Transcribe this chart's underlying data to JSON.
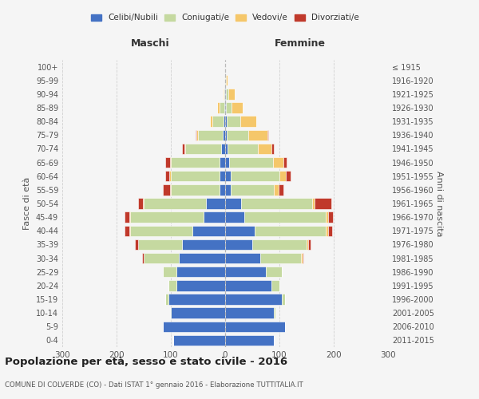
{
  "age_groups": [
    "0-4",
    "5-9",
    "10-14",
    "15-19",
    "20-24",
    "25-29",
    "30-34",
    "35-39",
    "40-44",
    "45-49",
    "50-54",
    "55-59",
    "60-64",
    "65-69",
    "70-74",
    "75-79",
    "80-84",
    "85-89",
    "90-94",
    "95-99",
    "100+"
  ],
  "birth_years": [
    "2011-2015",
    "2006-2010",
    "2001-2005",
    "1996-2000",
    "1991-1995",
    "1986-1990",
    "1981-1985",
    "1976-1980",
    "1971-1975",
    "1966-1970",
    "1961-1965",
    "1956-1960",
    "1951-1955",
    "1946-1950",
    "1941-1945",
    "1936-1940",
    "1931-1935",
    "1926-1930",
    "1921-1925",
    "1916-1920",
    "≤ 1915"
  ],
  "maschi": {
    "celibi": [
      95,
      115,
      100,
      105,
      90,
      90,
      85,
      80,
      60,
      40,
      35,
      10,
      10,
      10,
      8,
      5,
      3,
      2,
      1,
      0,
      0
    ],
    "coniugati": [
      0,
      0,
      2,
      5,
      15,
      25,
      65,
      80,
      115,
      135,
      115,
      90,
      90,
      90,
      65,
      45,
      20,
      8,
      2,
      0,
      0
    ],
    "vedovi": [
      0,
      0,
      0,
      0,
      0,
      0,
      0,
      1,
      2,
      2,
      2,
      2,
      3,
      2,
      2,
      3,
      5,
      5,
      2,
      0,
      0
    ],
    "divorziati": [
      0,
      0,
      0,
      0,
      0,
      0,
      3,
      5,
      8,
      8,
      8,
      12,
      8,
      8,
      4,
      2,
      0,
      0,
      0,
      0,
      0
    ]
  },
  "femmine": {
    "nubili": [
      90,
      110,
      90,
      105,
      85,
      75,
      65,
      50,
      55,
      35,
      30,
      10,
      10,
      8,
      5,
      3,
      3,
      2,
      1,
      0,
      0
    ],
    "coniugate": [
      0,
      0,
      2,
      5,
      15,
      30,
      75,
      100,
      130,
      150,
      130,
      80,
      90,
      80,
      55,
      40,
      25,
      10,
      5,
      2,
      0
    ],
    "vedove": [
      0,
      0,
      0,
      0,
      0,
      0,
      2,
      3,
      4,
      4,
      5,
      8,
      12,
      20,
      25,
      35,
      30,
      20,
      12,
      2,
      0
    ],
    "divorziate": [
      0,
      0,
      0,
      0,
      0,
      0,
      2,
      5,
      8,
      10,
      30,
      10,
      8,
      5,
      4,
      2,
      0,
      0,
      0,
      0,
      0
    ]
  },
  "colors": {
    "celibi": "#4472C4",
    "coniugati": "#c5d9a0",
    "vedovi": "#f5c76a",
    "divorziati": "#c0392b"
  },
  "xlim": 300,
  "title": "Popolazione per età, sesso e stato civile - 2016",
  "subtitle": "COMUNE DI COLVERDE (CO) - Dati ISTAT 1° gennaio 2016 - Elaborazione TUTTITALIA.IT",
  "ylabel_left": "Fasce di età",
  "ylabel_right": "Anni di nascita",
  "xlabel_left": "Maschi",
  "xlabel_right": "Femmine",
  "bg_color": "#f5f5f5",
  "grid_color": "#cccccc"
}
